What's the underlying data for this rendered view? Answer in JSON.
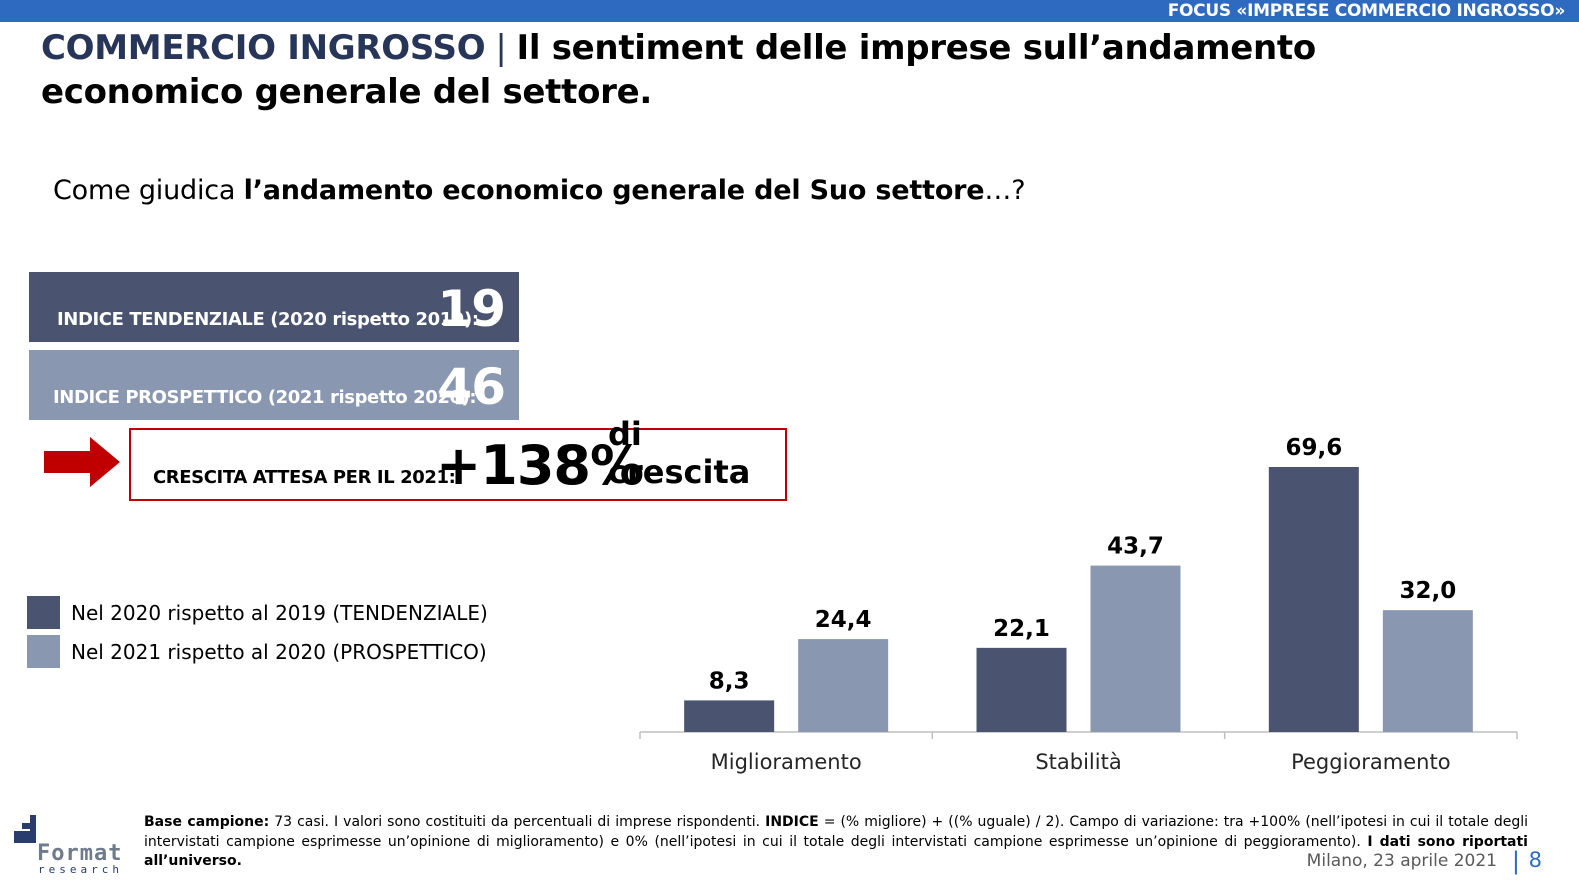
{
  "header": {
    "top_label": "FOCUS «IMPRESE COMMERCIO INGROSSO»",
    "title_part1": "COMMERCIO INGROSSO",
    "title_separator": "|",
    "title_part2": "Il sentiment delle imprese sull’andamento economico generale del settore."
  },
  "question": {
    "prefix": "Come giudica ",
    "bold": "l’andamento economico generale del Suo settore",
    "suffix": "…?"
  },
  "indices": [
    {
      "label": "INDICE TENDENZIALE (2020 rispetto 2019):",
      "value": "19",
      "color": "#4a5470"
    },
    {
      "label": "INDICE PROSPETTICO (2021 rispetto 2020):",
      "value": "46",
      "color": "#8a97b1"
    }
  ],
  "growth": {
    "label": "CRESCITA ATTESA PER IL 2021:",
    "value": "+138%",
    "suffix": "di crescita",
    "arrow_color": "#c00000"
  },
  "legend": [
    {
      "label": "Nel 2020 rispetto al 2019 (TENDENZIALE)",
      "color": "#4a5470"
    },
    {
      "label": "Nel 2021 rispetto al 2020 (PROSPETTICO)",
      "color": "#8a97b1"
    }
  ],
  "chart_data": {
    "type": "bar",
    "categories": [
      "Miglioramento",
      "Stabilità",
      "Peggioramento"
    ],
    "series": [
      {
        "name": "Nel 2020 rispetto al 2019 (TENDENZIALE)",
        "values": [
          8.3,
          22.1,
          69.6
        ],
        "labels": [
          "8,3",
          "22,1",
          "69,6"
        ],
        "color": "#4a5470"
      },
      {
        "name": "Nel 2021 rispetto al 2020 (PROSPETTICO)",
        "values": [
          24.4,
          43.7,
          32.0
        ],
        "labels": [
          "24,4",
          "43,7",
          "32,0"
        ],
        "color": "#8a97b1"
      }
    ],
    "ylim": [
      0,
      69.6
    ],
    "grid": false,
    "legend_position": "left"
  },
  "footnote": {
    "base_label": "Base campione:",
    "base_text": " 73 casi. I valori sono costituiti da percentuali di imprese rispondenti. ",
    "index_label": "INDICE",
    "index_text": " = (% migliore) + ((% uguale) / 2). Campo di variazione: tra +100% (nell’ipotesi in cui il totale degli intervistati campione esprimesse un’opinione di miglioramento) e 0% (nell’ipotesi in cui il totale degli intervistati campione esprimesse un’opinione di peggioramento). ",
    "final_bold": "I dati sono riportati all’universo."
  },
  "logo": {
    "word": "Format",
    "sub": "research"
  },
  "footer": {
    "date": "Milano, 23 aprile 2021",
    "separator": "|",
    "page": "8"
  }
}
